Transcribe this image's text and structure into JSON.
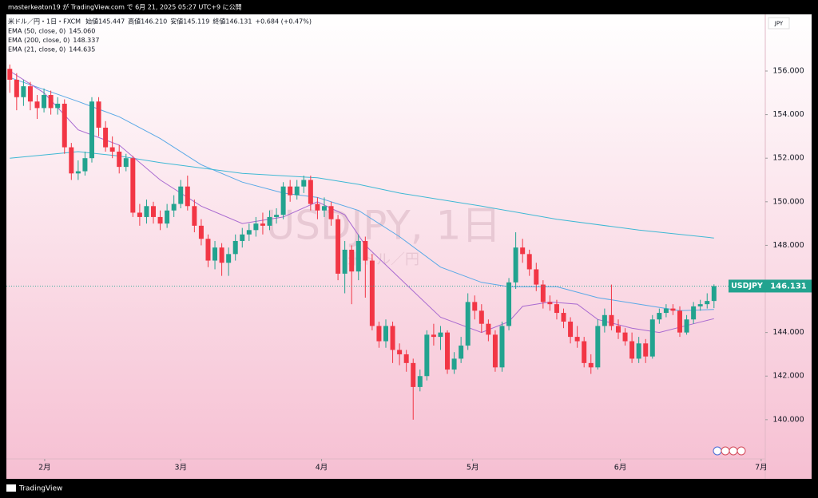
{
  "header": "masterkeaton19 が TradingView.com で 6月 21, 2025 05:27 UTC+9 に公開",
  "footer": "TradingView",
  "chart_data": {
    "type": "candlestick",
    "symbol_title": "米ドル／円・1日・FXCM",
    "ohlc_legend": [
      {
        "name": "始値",
        "value_label": "145.447"
      },
      {
        "name": "高値",
        "value_label": "146.210"
      },
      {
        "name": "安値",
        "value_label": "145.119"
      },
      {
        "name": "終値",
        "value_label": "146.131"
      }
    ],
    "change": "+0.684 (+0.47%)",
    "currency": "JPY",
    "watermark": "USDJPY, 1日",
    "watermark_sub": "米ドル／円",
    "up_color": "#22a38f",
    "down_color": "#f23645",
    "series": [
      {
        "name": "USDJPY",
        "open": [
          156.1,
          155.6,
          154.8,
          155.3,
          154.6,
          154.3,
          154.9,
          154.3,
          154.5,
          152.5,
          151.3,
          151.4,
          152.0,
          154.6,
          153.4,
          152.5,
          152.3,
          151.6,
          152.0,
          149.5,
          149.3,
          149.8,
          149.3,
          149.0,
          149.6,
          149.9,
          150.7,
          149.8,
          148.9,
          148.3,
          147.3,
          147.9,
          147.2,
          147.6,
          148.2,
          148.5,
          148.7,
          149.0,
          148.9,
          149.3,
          149.4,
          150.7,
          150.3,
          150.7,
          151.0,
          149.9,
          149.6,
          149.8,
          149.2,
          146.7,
          147.8,
          146.8,
          148.2,
          147.3,
          144.3,
          143.6,
          144.3,
          143.2,
          143.0,
          142.6,
          141.5,
          142.0,
          143.9,
          143.8,
          144.0,
          142.3,
          142.8,
          143.4,
          145.4,
          145.0,
          144.4,
          143.9,
          142.4,
          144.3,
          146.3,
          147.9,
          147.6,
          146.9,
          146.2,
          145.4,
          145.3,
          144.9,
          144.5,
          143.8,
          143.6,
          142.6,
          142.4,
          144.3,
          144.8,
          144.3,
          144.0,
          143.6,
          142.8,
          143.5,
          142.9,
          144.6,
          144.9,
          145.1,
          145.0,
          144.0,
          144.6,
          145.2,
          145.3,
          145.447
        ],
        "high": [
          156.3,
          155.9,
          155.6,
          155.5,
          154.9,
          155.2,
          155.1,
          154.8,
          154.7,
          152.7,
          151.9,
          152.3,
          154.8,
          154.8,
          153.7,
          153.0,
          152.6,
          152.2,
          152.1,
          149.9,
          150.1,
          150.0,
          149.6,
          149.9,
          150.3,
          151.0,
          151.2,
          150.1,
          149.2,
          148.5,
          148.2,
          148.1,
          147.9,
          148.5,
          148.8,
          149.0,
          149.3,
          149.5,
          149.6,
          149.7,
          150.9,
          151.0,
          151.0,
          151.2,
          151.2,
          150.2,
          150.2,
          150.0,
          149.4,
          148.2,
          148.0,
          148.5,
          148.4,
          147.6,
          144.5,
          144.6,
          144.5,
          143.5,
          143.2,
          142.8,
          142.3,
          144.1,
          144.4,
          144.3,
          144.1,
          143.1,
          143.8,
          145.8,
          145.7,
          145.3,
          144.6,
          144.1,
          144.5,
          146.5,
          148.6,
          148.3,
          147.8,
          147.2,
          146.4,
          145.7,
          145.5,
          145.1,
          144.7,
          144.3,
          143.8,
          143.0,
          144.6,
          145.1,
          146.2,
          144.6,
          144.2,
          144.0,
          143.8,
          143.7,
          144.8,
          145.1,
          145.3,
          145.3,
          145.2,
          144.8,
          145.4,
          145.5,
          145.8,
          146.21
        ],
        "low": [
          155.0,
          154.2,
          154.4,
          154.2,
          153.8,
          154.1,
          154.0,
          154.0,
          152.2,
          151.0,
          151.0,
          151.2,
          151.8,
          153.0,
          152.3,
          152.0,
          151.3,
          151.4,
          149.3,
          148.9,
          149.0,
          149.0,
          148.7,
          148.8,
          149.3,
          149.7,
          149.6,
          148.6,
          148.0,
          147.0,
          146.9,
          146.6,
          146.6,
          147.3,
          147.9,
          148.2,
          148.4,
          148.5,
          148.7,
          149.0,
          149.2,
          150.0,
          150.1,
          150.4,
          149.6,
          149.2,
          149.3,
          148.9,
          146.4,
          145.8,
          145.3,
          146.4,
          145.6,
          144.1,
          143.3,
          143.3,
          142.6,
          142.5,
          142.2,
          140.0,
          141.3,
          141.8,
          143.4,
          143.2,
          142.1,
          142.1,
          142.6,
          143.2,
          144.6,
          144.0,
          143.6,
          142.2,
          142.2,
          144.1,
          146.0,
          147.2,
          146.6,
          145.9,
          145.1,
          145.0,
          144.6,
          144.2,
          143.5,
          143.3,
          142.4,
          142.1,
          142.3,
          144.0,
          144.1,
          143.7,
          143.4,
          142.6,
          142.6,
          142.6,
          142.8,
          144.4,
          144.7,
          144.8,
          143.8,
          143.9,
          144.4,
          145.0,
          145.1,
          145.119
        ],
        "close": [
          155.6,
          154.8,
          155.3,
          154.6,
          154.3,
          154.9,
          154.3,
          154.5,
          152.5,
          151.3,
          151.4,
          152.0,
          154.6,
          153.4,
          152.5,
          152.3,
          151.6,
          152.0,
          149.5,
          149.3,
          149.8,
          149.3,
          149.0,
          149.6,
          149.9,
          150.7,
          149.8,
          148.9,
          148.3,
          147.3,
          147.9,
          147.2,
          147.6,
          148.2,
          148.5,
          148.7,
          149.0,
          148.9,
          149.3,
          149.4,
          150.7,
          150.3,
          150.7,
          151.0,
          149.9,
          149.6,
          149.8,
          149.2,
          146.7,
          147.8,
          146.8,
          148.2,
          147.3,
          144.3,
          143.6,
          144.3,
          143.2,
          143.0,
          142.6,
          141.5,
          142.0,
          143.9,
          143.8,
          144.0,
          142.3,
          142.8,
          143.4,
          145.4,
          145.0,
          144.4,
          143.9,
          142.4,
          144.3,
          146.3,
          147.9,
          147.6,
          146.9,
          146.2,
          145.4,
          145.3,
          144.9,
          144.5,
          143.8,
          143.6,
          142.6,
          142.4,
          144.3,
          144.8,
          144.3,
          144.0,
          143.6,
          142.8,
          143.5,
          142.9,
          144.6,
          144.9,
          145.1,
          145.0,
          144.0,
          144.6,
          145.2,
          145.3,
          145.447,
          146.131
        ]
      }
    ],
    "lines": [
      {
        "name": "EMA (50, close, 0)",
        "color": "#5aa9e6",
        "value_label": "145.060",
        "x": [
          0,
          10,
          16,
          22,
          28,
          34,
          40,
          45,
          51,
          57,
          63,
          69,
          73,
          80,
          86,
          92,
          98,
          103
        ],
        "values": [
          155.7,
          154.6,
          153.9,
          152.9,
          151.7,
          150.9,
          150.4,
          150.2,
          149.6,
          148.4,
          147.0,
          146.3,
          146.1,
          146.1,
          145.6,
          145.3,
          145.0,
          145.06
        ]
      },
      {
        "name": "EMA (200, close, 0)",
        "color": "#3fb8d4",
        "value_label": "148.337",
        "x": [
          0,
          10,
          16,
          22,
          34,
          45,
          51,
          57,
          69,
          80,
          92,
          103
        ],
        "values": [
          152.0,
          152.3,
          152.1,
          151.8,
          151.3,
          151.1,
          150.8,
          150.4,
          149.8,
          149.2,
          148.7,
          148.337
        ]
      },
      {
        "name": "EMA (21, close, 0)",
        "color": "#a96ad0",
        "value_label": "144.635",
        "x": [
          0,
          5,
          10,
          16,
          22,
          28,
          34,
          40,
          45,
          49,
          52,
          57,
          63,
          69,
          73,
          75,
          79,
          83,
          86,
          91,
          95,
          100,
          103
        ],
        "values": [
          156.0,
          155.0,
          153.3,
          152.6,
          151.0,
          149.8,
          149.0,
          149.3,
          150.0,
          149.4,
          148.0,
          146.5,
          144.7,
          144.0,
          144.5,
          145.2,
          145.4,
          145.3,
          144.6,
          144.2,
          144.0,
          144.4,
          144.635
        ]
      }
    ],
    "xlim": [
      -0.5,
      110.5
    ],
    "xticks": [
      {
        "value": 5.1,
        "label": "2月"
      },
      {
        "value": 25,
        "label": "3月"
      },
      {
        "value": 45.6,
        "label": "4月"
      },
      {
        "value": 67.7,
        "label": "5月"
      },
      {
        "value": 89.3,
        "label": "6月"
      },
      {
        "value": 109.9,
        "label": "7月"
      }
    ],
    "ylim": [
      138.2,
      158.6
    ],
    "yticks": [
      {
        "value": 140,
        "label": "140.000"
      },
      {
        "value": 142,
        "label": "142.000"
      },
      {
        "value": 144,
        "label": "144.000"
      },
      {
        "value": 146,
        "label": "146.000"
      },
      {
        "value": 148,
        "label": "148.000"
      },
      {
        "value": 150,
        "label": "150.000"
      },
      {
        "value": 152,
        "label": "152.000"
      },
      {
        "value": 154,
        "label": "154.000"
      },
      {
        "value": 156,
        "label": "156.000"
      }
    ]
  }
}
